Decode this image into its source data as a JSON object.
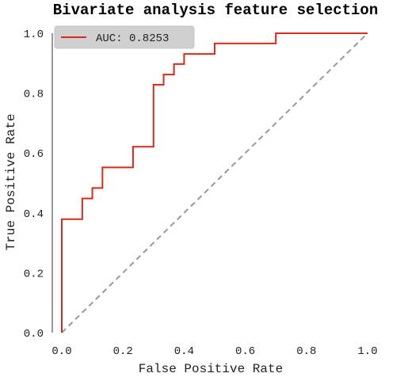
{
  "chart_data": {
    "type": "line",
    "title": "Bivariate analysis feature selection",
    "xlabel": "False Positive Rate",
    "ylabel": "True Positive Rate",
    "xlim": [
      0.0,
      1.0
    ],
    "ylim": [
      0.0,
      1.0
    ],
    "xticks": [
      "0.0",
      "0.2",
      "0.4",
      "0.6",
      "0.8",
      "1.0"
    ],
    "yticks": [
      "0.0",
      "0.2",
      "0.4",
      "0.6",
      "0.8",
      "1.0"
    ],
    "grid": false,
    "legend_position": "top-left",
    "series": [
      {
        "name": "AUC: 0.8253",
        "color": "#d62a1a",
        "style": "solid",
        "x": [
          0.0,
          0.0,
          0.067,
          0.067,
          0.1,
          0.1,
          0.133,
          0.133,
          0.233,
          0.233,
          0.3,
          0.3,
          0.333,
          0.333,
          0.367,
          0.367,
          0.4,
          0.4,
          0.5,
          0.5,
          0.7,
          0.7,
          1.0
        ],
        "y": [
          0.0,
          0.379,
          0.379,
          0.448,
          0.448,
          0.483,
          0.483,
          0.552,
          0.552,
          0.621,
          0.621,
          0.828,
          0.828,
          0.862,
          0.862,
          0.897,
          0.897,
          0.931,
          0.931,
          0.966,
          0.966,
          1.0,
          1.0
        ]
      },
      {
        "name": "",
        "color": "#999999",
        "style": "dashed",
        "x": [
          0.0,
          1.0
        ],
        "y": [
          0.0,
          1.0
        ]
      }
    ]
  }
}
